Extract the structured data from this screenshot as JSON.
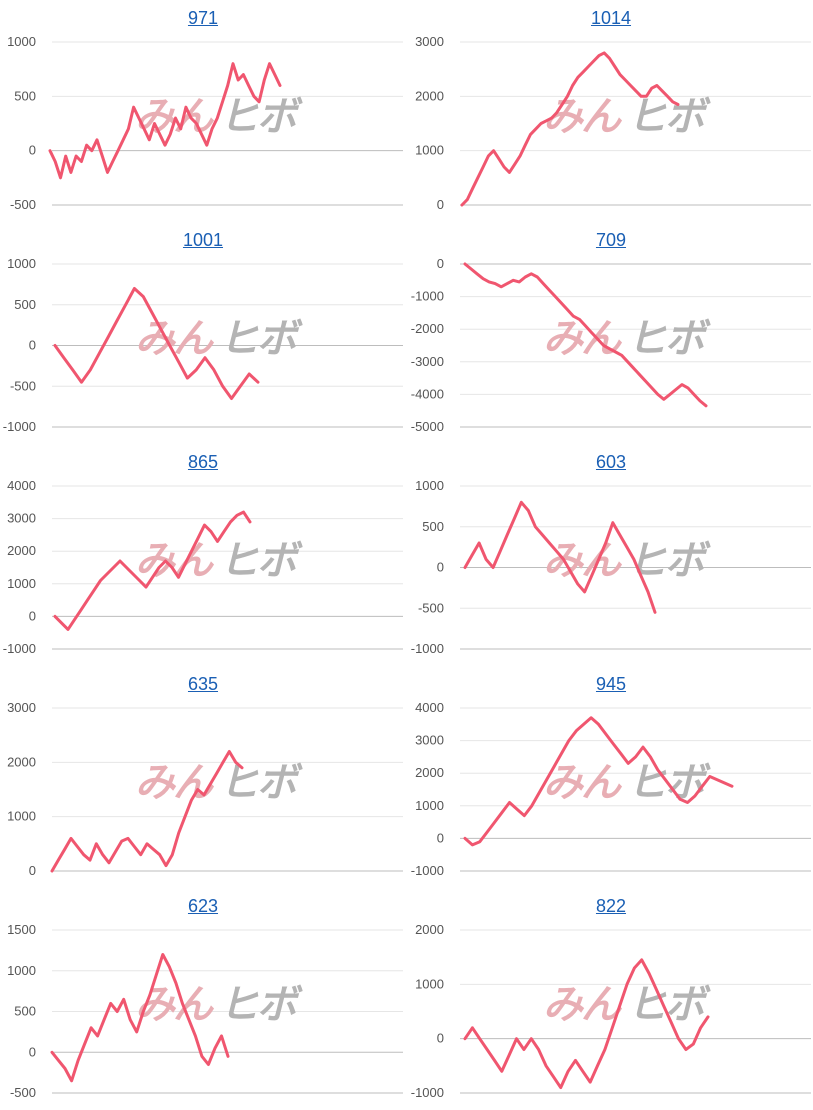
{
  "watermark": {
    "part1": "みん",
    "part2": "ヒボ"
  },
  "colors": {
    "line": "#f0566f",
    "grid": "#e6e6e6",
    "zero": "#bdbdbd",
    "link": "#1a5fb4"
  },
  "chart_data": [
    {
      "type": "line",
      "title": "971",
      "ylim": [
        -500,
        1000
      ],
      "yticks": [
        1000,
        500,
        0,
        -500
      ],
      "values": [
        0,
        -100,
        -250,
        -50,
        -200,
        -50,
        -100,
        50,
        0,
        100,
        -50,
        -200,
        -100,
        0,
        100,
        200,
        400,
        300,
        200,
        100,
        250,
        150,
        50,
        150,
        300,
        200,
        400,
        300,
        250,
        150,
        50,
        200,
        300,
        450,
        600,
        800,
        650,
        700,
        600,
        500,
        450,
        650,
        800,
        700,
        600
      ]
    },
    {
      "type": "line",
      "title": "1014",
      "ylim": [
        0,
        3000
      ],
      "yticks": [
        3000,
        2000,
        1000,
        0
      ],
      "values": [
        0,
        100,
        300,
        500,
        700,
        900,
        1000,
        850,
        700,
        600,
        750,
        900,
        1100,
        1300,
        1400,
        1500,
        1550,
        1600,
        1700,
        1850,
        2000,
        2200,
        2350,
        2450,
        2550,
        2650,
        2750,
        2800,
        2700,
        2550,
        2400,
        2300,
        2200,
        2100,
        2000,
        2000,
        2150,
        2200,
        2100,
        2000,
        1900,
        1850
      ]
    },
    {
      "type": "line",
      "title": "1001",
      "ylim": [
        -1000,
        1000
      ],
      "yticks": [
        1000,
        500,
        0,
        -500,
        -1000
      ],
      "values": [
        0,
        -150,
        -300,
        -450,
        -300,
        -100,
        100,
        300,
        500,
        700,
        600,
        400,
        200,
        0,
        -200,
        -400,
        -300,
        -150,
        -300,
        -500,
        -650,
        -500,
        -350,
        -450
      ]
    },
    {
      "type": "line",
      "title": "709",
      "ylim": [
        -5000,
        0
      ],
      "yticks": [
        0,
        -1000,
        -2000,
        -3000,
        -4000,
        -5000
      ],
      "values": [
        0,
        -150,
        -300,
        -450,
        -550,
        -600,
        -700,
        -600,
        -500,
        -550,
        -400,
        -300,
        -400,
        -600,
        -800,
        -1000,
        -1200,
        -1400,
        -1600,
        -1700,
        -1900,
        -2100,
        -2300,
        -2500,
        -2600,
        -2700,
        -2800,
        -3000,
        -3200,
        -3400,
        -3600,
        -3800,
        -4000,
        -4150,
        -4000,
        -3850,
        -3700,
        -3800,
        -4000,
        -4200,
        -4350
      ]
    },
    {
      "type": "line",
      "title": "865",
      "ylim": [
        -1000,
        4000
      ],
      "yticks": [
        4000,
        3000,
        2000,
        1000,
        0,
        -1000
      ],
      "values": [
        0,
        -200,
        -400,
        -100,
        200,
        500,
        800,
        1100,
        1300,
        1500,
        1700,
        1500,
        1300,
        1100,
        900,
        1200,
        1500,
        1700,
        1500,
        1200,
        1600,
        2000,
        2400,
        2800,
        2600,
        2300,
        2600,
        2900,
        3100,
        3200,
        2900
      ]
    },
    {
      "type": "line",
      "title": "603",
      "ylim": [
        -1000,
        1000
      ],
      "yticks": [
        1000,
        500,
        0,
        -500,
        -1000
      ],
      "values": [
        0,
        150,
        300,
        100,
        0,
        200,
        400,
        600,
        800,
        700,
        500,
        400,
        300,
        200,
        100,
        -50,
        -200,
        -300,
        -100,
        100,
        300,
        550,
        400,
        250,
        100,
        -100,
        -300,
        -550
      ]
    },
    {
      "type": "line",
      "title": "635",
      "ylim": [
        0,
        3000
      ],
      "yticks": [
        3000,
        2000,
        1000,
        0
      ],
      "values": [
        0,
        200,
        400,
        600,
        450,
        300,
        200,
        500,
        300,
        150,
        350,
        550,
        600,
        450,
        300,
        500,
        400,
        300,
        100,
        300,
        700,
        1000,
        1300,
        1500,
        1400,
        1600,
        1800,
        2000,
        2200,
        2000,
        1900
      ]
    },
    {
      "type": "line",
      "title": "945",
      "ylim": [
        -1000,
        4000
      ],
      "yticks": [
        4000,
        3000,
        2000,
        1000,
        0,
        -1000
      ],
      "values": [
        0,
        -200,
        -100,
        200,
        500,
        800,
        1100,
        900,
        700,
        1000,
        1400,
        1800,
        2200,
        2600,
        3000,
        3300,
        3500,
        3700,
        3500,
        3200,
        2900,
        2600,
        2300,
        2500,
        2800,
        2500,
        2100,
        1800,
        1500,
        1200,
        1100,
        1300,
        1600,
        1900,
        1800,
        1700,
        1600
      ]
    },
    {
      "type": "line",
      "title": "623",
      "ylim": [
        -500,
        1500
      ],
      "yticks": [
        1500,
        1000,
        500,
        0,
        -500
      ],
      "values": [
        0,
        -100,
        -200,
        -350,
        -100,
        100,
        300,
        200,
        400,
        600,
        500,
        650,
        400,
        250,
        500,
        700,
        950,
        1200,
        1050,
        850,
        600,
        400,
        200,
        -50,
        -150,
        50,
        200,
        -50
      ]
    },
    {
      "type": "line",
      "title": "822",
      "ylim": [
        -1000,
        2000
      ],
      "yticks": [
        2000,
        1000,
        0,
        -1000
      ],
      "values": [
        0,
        200,
        0,
        -200,
        -400,
        -600,
        -300,
        0,
        -200,
        0,
        -200,
        -500,
        -700,
        -900,
        -600,
        -400,
        -600,
        -800,
        -500,
        -200,
        200,
        600,
        1000,
        1300,
        1450,
        1200,
        900,
        600,
        300,
        0,
        -200,
        -100,
        200,
        400
      ]
    }
  ]
}
